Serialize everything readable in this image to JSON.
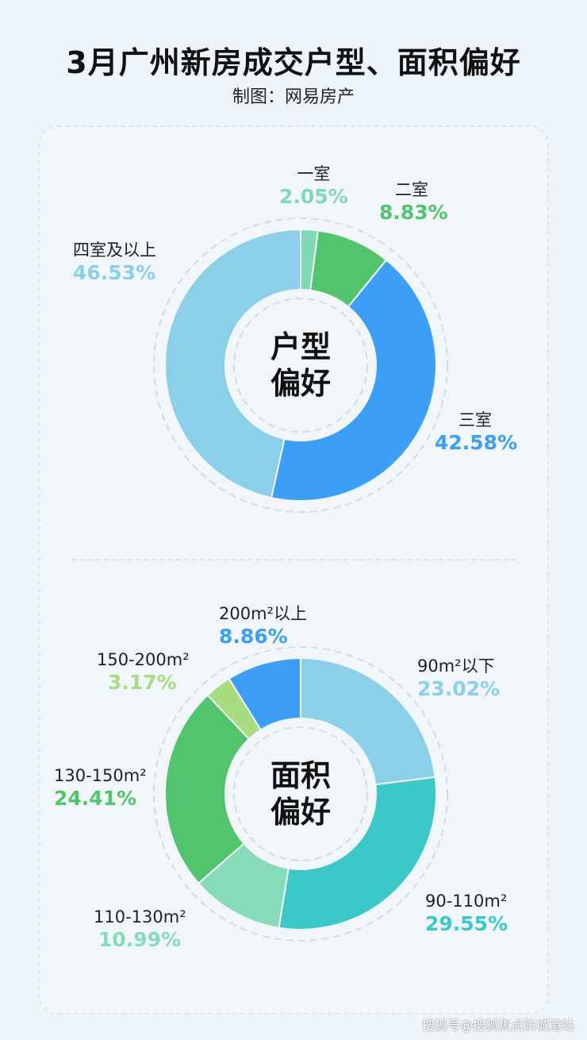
{
  "header": {
    "title": "3月广州新房成交户型、面积偏好",
    "subtitle": "制图：网易房产"
  },
  "watermark": "搜狐号@搜狐焦点防城港站",
  "chart_data": [
    {
      "type": "pie",
      "title": "户型偏好",
      "center_label": [
        "户型",
        "偏好"
      ],
      "categories": [
        "一室",
        "二室",
        "三室",
        "四室及以上"
      ],
      "values": [
        2.05,
        8.83,
        42.58,
        46.53
      ],
      "labels": [
        "2.05%",
        "8.83%",
        "42.58%",
        "46.53%"
      ],
      "colors": [
        "#7fd9b8",
        "#52c46e",
        "#3c9ff5",
        "#8ccfe9"
      ],
      "label_colors": [
        "#7fd9b8",
        "#52c46e",
        "#3c9ff5",
        "#8ccfe9"
      ]
    },
    {
      "type": "pie",
      "title": "面积偏好",
      "center_label": [
        "面积",
        "偏好"
      ],
      "categories": [
        "90m²以下",
        "90-110m²",
        "110-130m²",
        "130-150m²",
        "150-200m²",
        "200m²以上"
      ],
      "values": [
        23.02,
        29.55,
        10.99,
        24.41,
        3.17,
        8.86
      ],
      "labels": [
        "23.02%",
        "29.55%",
        "10.99%",
        "24.41%",
        "3.17%",
        "8.86%"
      ],
      "colors": [
        "#8ccfe9",
        "#3cc8c8",
        "#86dcb8",
        "#52c46e",
        "#a8dc80",
        "#3c9ff5"
      ],
      "label_colors": [
        "#8ccfe9",
        "#3cc8c8",
        "#86dcb8",
        "#52c46e",
        "#a8dc80",
        "#3c9ff5"
      ]
    }
  ]
}
